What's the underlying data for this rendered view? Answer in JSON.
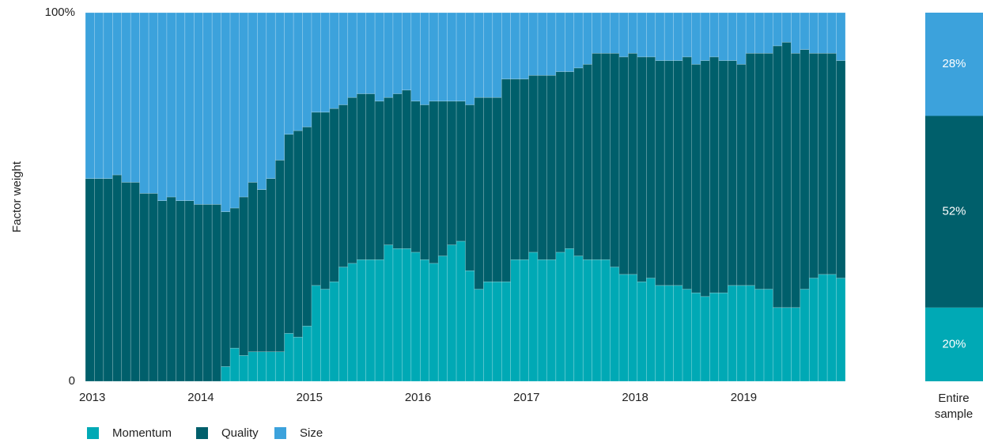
{
  "chart_data": {
    "type": "stacked-bar",
    "ylabel": "Factor weight",
    "categories": [
      "2013",
      null,
      null,
      null,
      null,
      null,
      null,
      null,
      null,
      null,
      null,
      null,
      "2014",
      null,
      null,
      null,
      null,
      null,
      null,
      null,
      null,
      null,
      null,
      null,
      "2015",
      null,
      null,
      null,
      null,
      null,
      null,
      null,
      null,
      null,
      null,
      null,
      "2016",
      null,
      null,
      null,
      null,
      null,
      null,
      null,
      null,
      null,
      null,
      null,
      "2017",
      null,
      null,
      null,
      null,
      null,
      null,
      null,
      null,
      null,
      null,
      null,
      "2018",
      null,
      null,
      null,
      null,
      null,
      null,
      null,
      null,
      null,
      null,
      null,
      "2019",
      null,
      null,
      null,
      null,
      null,
      null,
      null,
      null,
      null,
      null,
      null
    ],
    "series": [
      {
        "name": "Momentum",
        "color": "#00a9b5",
        "values": [
          0,
          0,
          0,
          0,
          0,
          0,
          0,
          0,
          0,
          0,
          0,
          0,
          0,
          0,
          0,
          4,
          9,
          7,
          8,
          8,
          8,
          8,
          13,
          12,
          15,
          26,
          25,
          27,
          31,
          32,
          33,
          33,
          33,
          37,
          36,
          36,
          35,
          33,
          32,
          34,
          37,
          38,
          30,
          25,
          27,
          27,
          27,
          33,
          33,
          35,
          33,
          33,
          35,
          36,
          34,
          33,
          33,
          33,
          31,
          29,
          29,
          27,
          28,
          26,
          26,
          26,
          25,
          24,
          23,
          24,
          24,
          26,
          26,
          26,
          25,
          25,
          20,
          20,
          20,
          25,
          28,
          29,
          29,
          28
        ]
      },
      {
        "name": "Quality",
        "color": "#005f6b",
        "values": [
          55,
          55,
          55,
          56,
          54,
          54,
          51,
          51,
          49,
          50,
          49,
          49,
          48,
          48,
          48,
          42,
          38,
          43,
          46,
          44,
          47,
          52,
          54,
          56,
          54,
          47,
          48,
          47,
          44,
          45,
          45,
          45,
          43,
          40,
          42,
          43,
          41,
          42,
          44,
          42,
          39,
          38,
          45,
          52,
          50,
          50,
          55,
          49,
          49,
          48,
          50,
          50,
          49,
          48,
          51,
          53,
          56,
          56,
          58,
          59,
          60,
          61,
          60,
          61,
          61,
          61,
          63,
          62,
          64,
          64,
          63,
          61,
          60,
          63,
          64,
          64,
          71,
          72,
          69,
          65,
          61,
          60,
          60,
          59
        ]
      },
      {
        "name": "Size",
        "color": "#3ca2dc",
        "values": [
          45,
          45,
          45,
          44,
          46,
          46,
          49,
          49,
          51,
          50,
          51,
          51,
          52,
          52,
          52,
          54,
          53,
          50,
          46,
          48,
          45,
          40,
          33,
          32,
          31,
          27,
          27,
          26,
          25,
          23,
          22,
          22,
          24,
          23,
          22,
          21,
          24,
          25,
          24,
          24,
          24,
          24,
          25,
          23,
          23,
          23,
          18,
          18,
          18,
          17,
          17,
          17,
          16,
          16,
          15,
          14,
          11,
          11,
          11,
          12,
          11,
          12,
          12,
          13,
          13,
          13,
          12,
          14,
          13,
          12,
          13,
          13,
          14,
          11,
          11,
          11,
          9,
          8,
          11,
          10,
          11,
          11,
          11,
          13
        ]
      }
    ],
    "ylim": [
      0,
      100
    ],
    "yticks": [
      0,
      {
        "value": 100,
        "label": "100%"
      }
    ],
    "grid": false,
    "legend": "bottom-left",
    "summary": {
      "category": "Entire sample",
      "values": [
        20,
        52,
        28
      ],
      "value_labels": [
        "20%",
        "52%",
        "28%"
      ]
    }
  }
}
